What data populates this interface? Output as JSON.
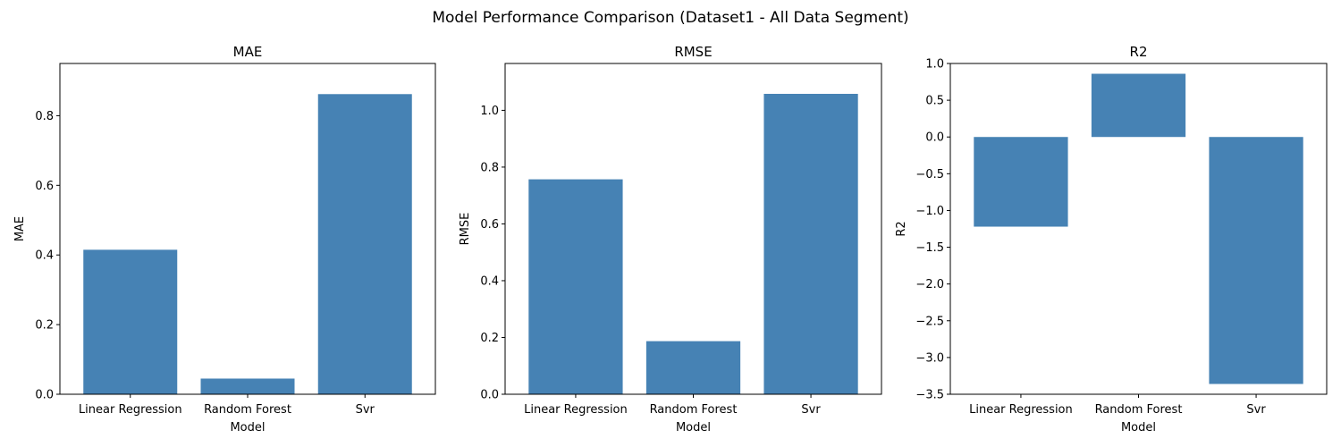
{
  "figure": {
    "title": "Model Performance Comparison (Dataset1 - All Data Segment)",
    "bar_color": "#4682b4"
  },
  "chart_data": [
    {
      "type": "bar",
      "title": "MAE",
      "xlabel": "Model",
      "ylabel": "MAE",
      "categories": [
        "Linear Regression",
        "Random Forest",
        "Svr"
      ],
      "values": [
        0.415,
        0.045,
        0.862
      ],
      "ylim": [
        0,
        0.95
      ],
      "yticks": [
        0.0,
        0.2,
        0.4,
        0.6,
        0.8
      ],
      "ytick_labels": [
        "0.0",
        "0.2",
        "0.4",
        "0.6",
        "0.8"
      ],
      "grid": false
    },
    {
      "type": "bar",
      "title": "RMSE",
      "xlabel": "Model",
      "ylabel": "RMSE",
      "categories": [
        "Linear Regression",
        "Random Forest",
        "Svr"
      ],
      "values": [
        0.757,
        0.187,
        1.058
      ],
      "ylim": [
        0,
        1.165
      ],
      "yticks": [
        0.0,
        0.2,
        0.4,
        0.6,
        0.8,
        1.0
      ],
      "ytick_labels": [
        "0.0",
        "0.2",
        "0.4",
        "0.6",
        "0.8",
        "1.0"
      ],
      "grid": false
    },
    {
      "type": "bar",
      "title": "R2",
      "xlabel": "Model",
      "ylabel": "R2",
      "categories": [
        "Linear Regression",
        "Random Forest",
        "Svr"
      ],
      "values": [
        -1.22,
        0.86,
        -3.36
      ],
      "ylim": [
        -3.5,
        1.0
      ],
      "yticks": [
        -3.5,
        -3.0,
        -2.5,
        -2.0,
        -1.5,
        -1.0,
        -0.5,
        0.0,
        0.5,
        1.0
      ],
      "ytick_labels": [
        "−3.5",
        "−3.0",
        "−2.5",
        "−2.0",
        "−1.5",
        "−1.0",
        "−0.5",
        "0.0",
        "0.5",
        "1.0"
      ],
      "grid": false
    }
  ]
}
